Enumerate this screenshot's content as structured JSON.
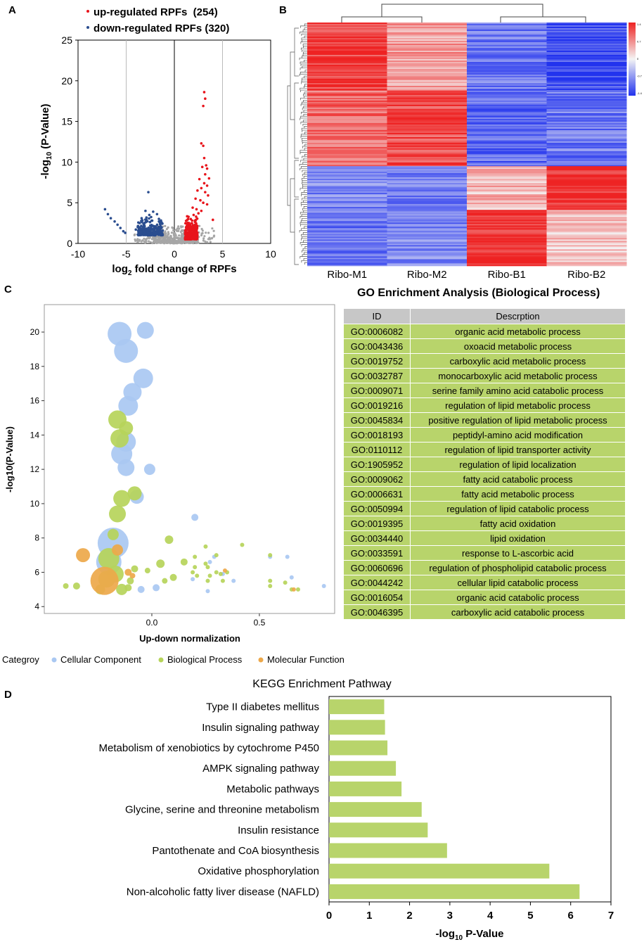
{
  "panels": {
    "a": "A",
    "b": "B",
    "c": "C",
    "d": "D"
  },
  "volcano": {
    "legend_up": "up-regulated RPFs  (254)",
    "legend_down": "down-regulated RPFs (320)",
    "colors": {
      "up": "#e8141b",
      "down": "#2a4d8f",
      "ns": "#a6a6a6"
    }
  },
  "heatmap": {
    "columns": [
      "Ribo-M1",
      "Ribo-M2",
      "Ribo-B1",
      "Ribo-B2"
    ],
    "scale": [
      "1.4",
      "0.7",
      "0",
      "-0.7",
      "-1.4"
    ],
    "colors": {
      "high": "#ee2222",
      "mid": "#f4f4f4",
      "low": "#2233ee"
    }
  },
  "bubble": {
    "legend_title": "Categroy",
    "legend_items": [
      {
        "label": "Cellular Component",
        "color": "#a9c8f2"
      },
      {
        "label": "Biological Process",
        "color": "#b6d45a"
      },
      {
        "label": "Molecular Function",
        "color": "#eda84a"
      }
    ]
  },
  "go_table": {
    "title": "GO Enrichment Analysis (Biological Process)",
    "headers": [
      "ID",
      "Descrption"
    ],
    "rows": [
      {
        "id": "GO:0006082",
        "desc": "organic acid metabolic process"
      },
      {
        "id": "GO:0043436",
        "desc": "oxoacid metabolic process"
      },
      {
        "id": "GO:0019752",
        "desc": "carboxylic acid metabolic process"
      },
      {
        "id": "GO:0032787",
        "desc": "monocarboxylic acid metabolic process"
      },
      {
        "id": "GO:0009071",
        "desc": "serine family amino acid catabolic process"
      },
      {
        "id": "GO:0019216",
        "desc": "regulation of lipid metabolic process"
      },
      {
        "id": "GO:0045834",
        "desc": "positive regulation of lipid metabolic process"
      },
      {
        "id": "GO:0018193",
        "desc": "peptidyl-amino acid modification"
      },
      {
        "id": "GO:0110112",
        "desc": "regulation of lipid transporter activity"
      },
      {
        "id": "GO:1905952",
        "desc": "regulation of lipid localization"
      },
      {
        "id": "GO:0009062",
        "desc": "fatty acid catabolic process"
      },
      {
        "id": "GO:0006631",
        "desc": "fatty acid metabolic process"
      },
      {
        "id": "GO:0050994",
        "desc": "regulation of lipid catabolic process"
      },
      {
        "id": "GO:0019395",
        "desc": "fatty acid oxidation"
      },
      {
        "id": "GO:0034440",
        "desc": "lipid oxidation"
      },
      {
        "id": "GO:0033591",
        "desc": "response to L-ascorbic acid"
      },
      {
        "id": "GO:0060696",
        "desc": "regulation of phospholipid catabolic process"
      },
      {
        "id": "GO:0044242",
        "desc": "cellular lipid catabolic process"
      },
      {
        "id": "GO:0016054",
        "desc": "organic acid catabolic process"
      },
      {
        "id": "GO:0046395",
        "desc": "carboxylic acid catabolic process"
      }
    ]
  },
  "chart_data": [
    {
      "type": "scatter",
      "title": "",
      "xlabel": "log2 fold change of RPFs",
      "ylabel": "-log10 (P-Value)",
      "xlim": [
        -10,
        10
      ],
      "ylim": [
        0,
        25
      ],
      "xticks": [
        -10,
        -5,
        0,
        5,
        10
      ],
      "yticks": [
        0,
        5,
        10,
        15,
        20,
        25
      ],
      "series": [
        {
          "name": "up-regulated RPFs",
          "points": [
            [
              3.1,
              18.6
            ],
            [
              3.2,
              17.8
            ],
            [
              3.0,
              16.9
            ],
            [
              2.8,
              12.3
            ],
            [
              3.0,
              12.0
            ],
            [
              3.1,
              10.5
            ],
            [
              3.3,
              9.6
            ],
            [
              3.4,
              9.2
            ],
            [
              2.9,
              9.4
            ],
            [
              3.2,
              8.5
            ],
            [
              3.6,
              8.0
            ],
            [
              2.6,
              7.9
            ],
            [
              3.1,
              7.4
            ],
            [
              3.4,
              7.1
            ],
            [
              2.8,
              6.8
            ],
            [
              2.4,
              6.5
            ],
            [
              3.2,
              6.3
            ],
            [
              3.5,
              5.9
            ],
            [
              2.2,
              5.5
            ],
            [
              2.7,
              5.3
            ],
            [
              3.0,
              5.0
            ],
            [
              3.4,
              4.8
            ],
            [
              1.9,
              4.4
            ],
            [
              2.3,
              4.2
            ],
            [
              2.8,
              4.0
            ],
            [
              4.0,
              2.9
            ],
            [
              2.0,
              3.5
            ],
            [
              2.5,
              3.7
            ],
            [
              1.7,
              3.0
            ]
          ]
        },
        {
          "name": "down-regulated RPFs",
          "points": [
            [
              -7.2,
              4.2
            ],
            [
              -6.9,
              3.6
            ],
            [
              -6.6,
              3.1
            ],
            [
              -6.2,
              2.7
            ],
            [
              -5.9,
              2.3
            ],
            [
              -5.6,
              1.9
            ],
            [
              -5.3,
              1.5
            ],
            [
              -5.1,
              1.3
            ],
            [
              -2.7,
              6.3
            ],
            [
              -3.0,
              4.0
            ],
            [
              -2.2,
              3.9
            ],
            [
              -2.6,
              3.5
            ],
            [
              -1.8,
              3.6
            ],
            [
              -3.4,
              3.1
            ],
            [
              -2.9,
              2.9
            ],
            [
              -2.3,
              2.8
            ],
            [
              -1.6,
              2.7
            ],
            [
              -3.6,
              2.5
            ],
            [
              -3.2,
              2.4
            ],
            [
              -2.5,
              2.2
            ],
            [
              -2.0,
              2.1
            ],
            [
              -1.5,
              2.0
            ],
            [
              -3.8,
              2.0
            ],
            [
              -2.8,
              1.8
            ],
            [
              -2.4,
              1.7
            ],
            [
              -1.8,
              1.6
            ],
            [
              -1.4,
              1.5
            ],
            [
              -3.1,
              1.5
            ],
            [
              -2.1,
              1.4
            ],
            [
              -3.5,
              1.4
            ],
            [
              -4.0,
              1.7
            ]
          ]
        }
      ]
    },
    {
      "type": "heatmap",
      "columns": [
        "Ribo-M1",
        "Ribo-M2",
        "Ribo-B1",
        "Ribo-B2"
      ],
      "row_blocks": [
        {
          "rows": 0.28,
          "values": [
            1.2,
            0.6,
            -0.9,
            -1.2
          ]
        },
        {
          "rows": 0.31,
          "values": [
            0.9,
            1.1,
            -1.0,
            -0.9
          ]
        },
        {
          "rows": 0.18,
          "values": [
            -0.8,
            -0.9,
            0.4,
            1.3
          ]
        },
        {
          "rows": 0.23,
          "values": [
            -0.9,
            -0.8,
            1.3,
            0.3
          ]
        }
      ],
      "scale": [
        -1.4,
        1.4
      ]
    },
    {
      "type": "scatter",
      "title": "",
      "xlabel": "Up-down normalization",
      "ylabel": "-log10(P-Value)",
      "xlim": [
        -0.5,
        0.85
      ],
      "ylim": [
        3.6,
        21.6
      ],
      "xticks": [
        0.0,
        0.5
      ],
      "yticks": [
        4,
        6,
        8,
        10,
        12,
        14,
        16,
        18,
        20
      ],
      "series": [
        {
          "name": "Cellular Component",
          "points": [
            [
              -0.15,
              19.9,
              17
            ],
            [
              -0.12,
              18.9,
              17
            ],
            [
              -0.03,
              20.1,
              12
            ],
            [
              -0.04,
              17.3,
              14
            ],
            [
              -0.09,
              16.5,
              13
            ],
            [
              -0.11,
              15.7,
              14
            ],
            [
              -0.12,
              13.6,
              14
            ],
            [
              -0.14,
              12.9,
              15
            ],
            [
              -0.12,
              12.1,
              12
            ],
            [
              -0.01,
              12.0,
              8
            ],
            [
              -0.07,
              10.4,
              10
            ],
            [
              -0.18,
              7.7,
              22
            ],
            [
              -0.2,
              6.6,
              18
            ],
            [
              0.2,
              9.2,
              5
            ],
            [
              0.33,
              5.9,
              3
            ],
            [
              0.27,
              6.6,
              3
            ],
            [
              0.26,
              4.9,
              3
            ],
            [
              0.63,
              6.9,
              3
            ],
            [
              0.55,
              6.9,
              3
            ],
            [
              0.8,
              5.2,
              3
            ],
            [
              0.38,
              5.5,
              3
            ],
            [
              0.65,
              5.7,
              3
            ],
            [
              -0.05,
              5.0,
              5
            ],
            [
              0.02,
              5.1,
              5
            ],
            [
              0.19,
              5.6,
              3
            ],
            [
              0.29,
              6.9,
              3
            ]
          ]
        },
        {
          "name": "Biological Process",
          "points": [
            [
              -0.16,
              14.9,
              13
            ],
            [
              -0.12,
              14.4,
              10
            ],
            [
              -0.15,
              13.8,
              13
            ],
            [
              -0.14,
              10.3,
              12
            ],
            [
              -0.08,
              10.6,
              10
            ],
            [
              -0.16,
              9.4,
              12
            ],
            [
              -0.18,
              8.2,
              8
            ],
            [
              -0.2,
              6.8,
              15
            ],
            [
              -0.17,
              5.9,
              12
            ],
            [
              -0.21,
              5.6,
              12
            ],
            [
              -0.14,
              5.0,
              8
            ],
            [
              -0.24,
              5.0,
              7
            ],
            [
              -0.35,
              5.2,
              5
            ],
            [
              -0.4,
              5.2,
              4
            ],
            [
              -0.08,
              6.2,
              5
            ],
            [
              -0.02,
              6.1,
              4
            ],
            [
              0.06,
              5.5,
              4
            ],
            [
              0.04,
              6.5,
              6
            ],
            [
              0.08,
              7.9,
              6
            ],
            [
              0.1,
              5.7,
              5
            ],
            [
              0.15,
              6.6,
              5
            ],
            [
              0.2,
              6.3,
              3
            ],
            [
              0.2,
              6.9,
              3
            ],
            [
              0.25,
              7.5,
              3
            ],
            [
              0.25,
              6.5,
              3
            ],
            [
              0.26,
              6.3,
              3
            ],
            [
              0.32,
              5.9,
              3
            ],
            [
              0.3,
              6.0,
              3
            ],
            [
              0.33,
              5.5,
              3
            ],
            [
              0.35,
              6.0,
              3
            ],
            [
              0.42,
              7.6,
              3
            ],
            [
              0.55,
              7.0,
              3
            ],
            [
              0.55,
              5.5,
              3
            ],
            [
              0.55,
              5.2,
              3
            ],
            [
              0.62,
              5.4,
              3
            ],
            [
              0.65,
              5.0,
              3
            ],
            [
              0.68,
              5.0,
              3
            ],
            [
              0.26,
              5.5,
              3
            ],
            [
              0.3,
              7.0,
              3
            ],
            [
              0.19,
              6.0,
              3
            ],
            [
              0.21,
              5.8,
              3
            ],
            [
              -0.1,
              5.5,
              5
            ],
            [
              -0.11,
              5.1,
              5
            ],
            [
              0.27,
              5.8,
              3
            ]
          ]
        },
        {
          "name": "Molecular Function",
          "points": [
            [
              -0.22,
              5.5,
              20
            ],
            [
              -0.32,
              7.0,
              10
            ],
            [
              -0.16,
              7.3,
              8
            ],
            [
              -0.11,
              6.0,
              5
            ],
            [
              -0.09,
              5.8,
              4
            ],
            [
              0.34,
              6.1,
              3
            ],
            [
              0.66,
              5.0,
              3
            ]
          ]
        }
      ]
    },
    {
      "type": "bar",
      "orientation": "horizontal",
      "title": "KEGG Enrichment Pathway",
      "xlabel": "-log10 P-Value",
      "ylabel": "",
      "xlim": [
        0,
        7
      ],
      "xticks": [
        0,
        1,
        2,
        3,
        4,
        5,
        6,
        7
      ],
      "categories": [
        "Type II diabetes mellitus",
        "Insulin signaling pathway",
        "Metabolism of xenobiotics by cytochrome P450",
        "AMPK signaling pathway",
        "Metabolic pathways",
        "Glycine, serine and threonine metabolism",
        "Insulin resistance",
        "Pantothenate and CoA biosynthesis",
        "Oxidative phosphorylation",
        "Non-alcoholic fatty liver disease (NAFLD)"
      ],
      "values": [
        1.37,
        1.39,
        1.45,
        1.66,
        1.8,
        2.3,
        2.45,
        2.93,
        5.47,
        6.22
      ],
      "color": "#b8d46b"
    }
  ]
}
